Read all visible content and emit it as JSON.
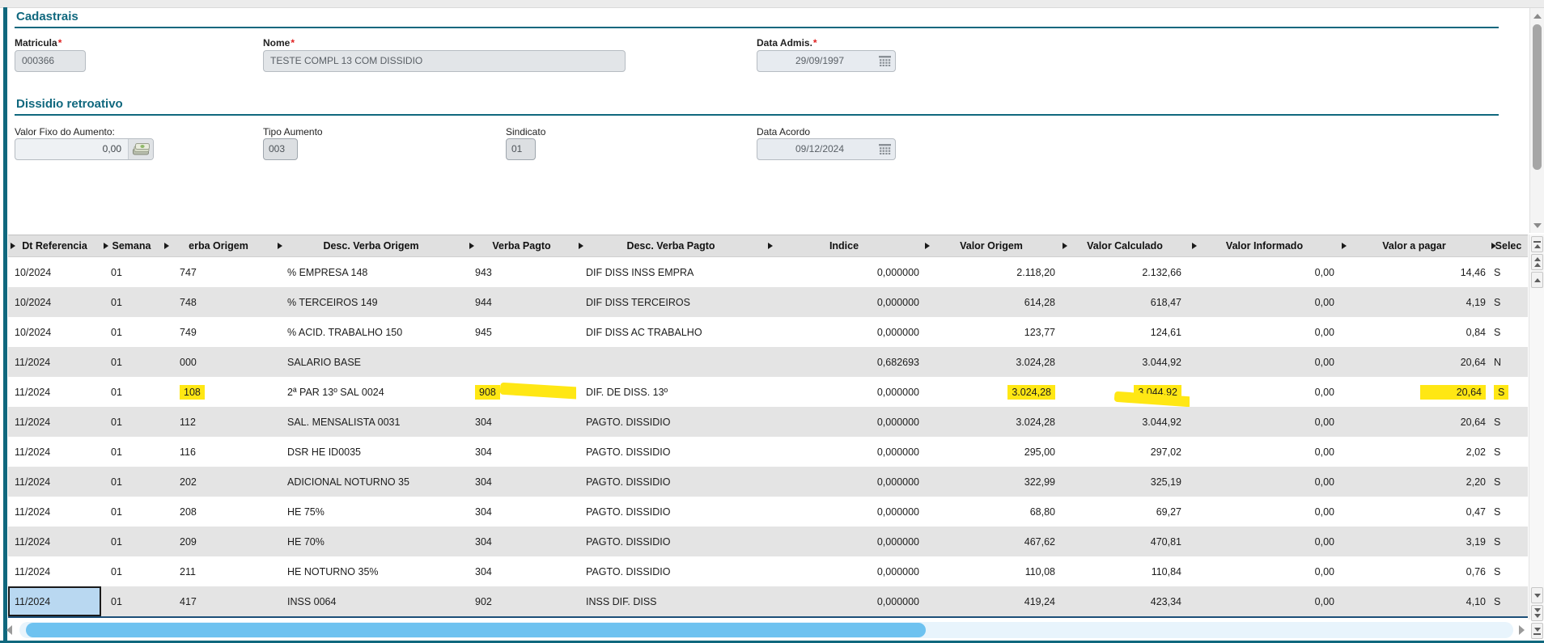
{
  "colors": {
    "accent_teal": "#10687e",
    "highlight_yellow": "#ffe714",
    "selection_blue": "#b9d8f1",
    "scrollbar_blue": "#6ec2f0"
  },
  "sections": {
    "cadastrais": {
      "title": "Cadastrais",
      "fields": {
        "matricula": {
          "label": "Matricula",
          "required": "*",
          "value": "000366"
        },
        "nome": {
          "label": "Nome",
          "required": "*",
          "value": "TESTE COMPL 13 COM DISSIDIO"
        },
        "data_admissao": {
          "label": "Data Admis.",
          "required": "*",
          "value": "29/09/1997",
          "icon": "calendar-icon"
        }
      }
    },
    "dissidio_retroativo": {
      "title": "Dissidio retroativo",
      "fields": {
        "valor_fixo": {
          "label": "Valor Fixo do Aumento:",
          "value": "0,00",
          "icon": "money-icon"
        },
        "tipo_aumento": {
          "label": "Tipo Aumento",
          "value": "003"
        },
        "sindicato": {
          "label": "Sindicato",
          "value": "01"
        },
        "data_acordo": {
          "label": "Data Acordo",
          "value": "09/12/2024",
          "icon": "calendar-icon"
        }
      }
    }
  },
  "table": {
    "columns": [
      {
        "key": "dt_referencia",
        "label": "Dt Referencia"
      },
      {
        "key": "semana",
        "label": "Semana"
      },
      {
        "key": "verba_origem",
        "label": "erba Origem"
      },
      {
        "key": "desc_verba_origem",
        "label": "Desc. Verba Origem"
      },
      {
        "key": "verba_pagto",
        "label": "Verba Pagto"
      },
      {
        "key": "desc_verba_pagto",
        "label": "Desc. Verba Pagto"
      },
      {
        "key": "indice",
        "label": "Indice"
      },
      {
        "key": "valor_origem",
        "label": "Valor Origem"
      },
      {
        "key": "valor_calculado",
        "label": "Valor Calculado"
      },
      {
        "key": "valor_informado",
        "label": "Valor Informado"
      },
      {
        "key": "valor_a_pagar",
        "label": "Valor a pagar"
      },
      {
        "key": "selec",
        "label": "Selec"
      }
    ],
    "rows": [
      {
        "dt_referencia": "10/2024",
        "semana": "01",
        "verba_origem": "747",
        "desc_verba_origem": "% EMPRESA 148",
        "verba_pagto": "943",
        "desc_verba_pagto": "DIF DISS INSS EMPRA",
        "indice": "0,000000",
        "valor_origem": "2.118,20",
        "valor_calculado": "2.132,66",
        "valor_informado": "0,00",
        "valor_a_pagar": "14,46",
        "selec": "S"
      },
      {
        "dt_referencia": "10/2024",
        "semana": "01",
        "verba_origem": "748",
        "desc_verba_origem": "% TERCEIROS 149",
        "verba_pagto": "944",
        "desc_verba_pagto": "DIF DISS TERCEIROS",
        "indice": "0,000000",
        "valor_origem": "614,28",
        "valor_calculado": "618,47",
        "valor_informado": "0,00",
        "valor_a_pagar": "4,19",
        "selec": "S"
      },
      {
        "dt_referencia": "10/2024",
        "semana": "01",
        "verba_origem": "749",
        "desc_verba_origem": "% ACID. TRABALHO 150",
        "verba_pagto": "945",
        "desc_verba_pagto": "DIF DISS AC TRABALHO",
        "indice": "0,000000",
        "valor_origem": "123,77",
        "valor_calculado": "124,61",
        "valor_informado": "0,00",
        "valor_a_pagar": "0,84",
        "selec": "S"
      },
      {
        "dt_referencia": "11/2024",
        "semana": "01",
        "verba_origem": "000",
        "desc_verba_origem": "SALARIO BASE",
        "verba_pagto": "",
        "desc_verba_pagto": "",
        "indice": "0,682693",
        "valor_origem": "3.024,28",
        "valor_calculado": "3.044,92",
        "valor_informado": "0,00",
        "valor_a_pagar": "20,64",
        "selec": "N"
      },
      {
        "dt_referencia": "11/2024",
        "semana": "01",
        "verba_origem": "108",
        "desc_verba_origem": "2ª PAR 13º SAL 0024",
        "verba_pagto": "908",
        "desc_verba_pagto": "DIF. DE DISS. 13º",
        "indice": "0,000000",
        "valor_origem": "3.024,28",
        "valor_calculado": "3.044,92",
        "valor_informado": "0,00",
        "valor_a_pagar": "20,64",
        "selec": "S",
        "highlights": [
          "verba_origem",
          "verba_pagto",
          "valor_origem",
          "valor_calculado",
          "valor_a_pagar",
          "selec"
        ]
      },
      {
        "dt_referencia": "11/2024",
        "semana": "01",
        "verba_origem": "112",
        "desc_verba_origem": "SAL. MENSALISTA 0031",
        "verba_pagto": "304",
        "desc_verba_pagto": "PAGTO. DISSIDIO",
        "indice": "0,000000",
        "valor_origem": "3.024,28",
        "valor_calculado": "3.044,92",
        "valor_informado": "0,00",
        "valor_a_pagar": "20,64",
        "selec": "S"
      },
      {
        "dt_referencia": "11/2024",
        "semana": "01",
        "verba_origem": "116",
        "desc_verba_origem": "DSR HE ID0035",
        "verba_pagto": "304",
        "desc_verba_pagto": "PAGTO. DISSIDIO",
        "indice": "0,000000",
        "valor_origem": "295,00",
        "valor_calculado": "297,02",
        "valor_informado": "0,00",
        "valor_a_pagar": "2,02",
        "selec": "S"
      },
      {
        "dt_referencia": "11/2024",
        "semana": "01",
        "verba_origem": "202",
        "desc_verba_origem": "ADICIONAL NOTURNO 35",
        "verba_pagto": "304",
        "desc_verba_pagto": "PAGTO. DISSIDIO",
        "indice": "0,000000",
        "valor_origem": "322,99",
        "valor_calculado": "325,19",
        "valor_informado": "0,00",
        "valor_a_pagar": "2,20",
        "selec": "S"
      },
      {
        "dt_referencia": "11/2024",
        "semana": "01",
        "verba_origem": "208",
        "desc_verba_origem": "HE 75%",
        "verba_pagto": "304",
        "desc_verba_pagto": "PAGTO. DISSIDIO",
        "indice": "0,000000",
        "valor_origem": "68,80",
        "valor_calculado": "69,27",
        "valor_informado": "0,00",
        "valor_a_pagar": "0,47",
        "selec": "S"
      },
      {
        "dt_referencia": "11/2024",
        "semana": "01",
        "verba_origem": "209",
        "desc_verba_origem": "HE 70%",
        "verba_pagto": "304",
        "desc_verba_pagto": "PAGTO. DISSIDIO",
        "indice": "0,000000",
        "valor_origem": "467,62",
        "valor_calculado": "470,81",
        "valor_informado": "0,00",
        "valor_a_pagar": "3,19",
        "selec": "S"
      },
      {
        "dt_referencia": "11/2024",
        "semana": "01",
        "verba_origem": "211",
        "desc_verba_origem": "HE NOTURNO 35%",
        "verba_pagto": "304",
        "desc_verba_pagto": "PAGTO. DISSIDIO",
        "indice": "0,000000",
        "valor_origem": "110,08",
        "valor_calculado": "110,84",
        "valor_informado": "0,00",
        "valor_a_pagar": "0,76",
        "selec": "S"
      },
      {
        "dt_referencia": "11/2024",
        "semana": "01",
        "verba_origem": "417",
        "desc_verba_origem": "INSS 0064",
        "verba_pagto": "902",
        "desc_verba_pagto": "INSS DIF. DISS",
        "indice": "0,000000",
        "valor_origem": "419,24",
        "valor_calculado": "423,34",
        "valor_informado": "0,00",
        "valor_a_pagar": "4,10",
        "selec": "S",
        "selected_cell": "dt_referencia"
      }
    ]
  }
}
